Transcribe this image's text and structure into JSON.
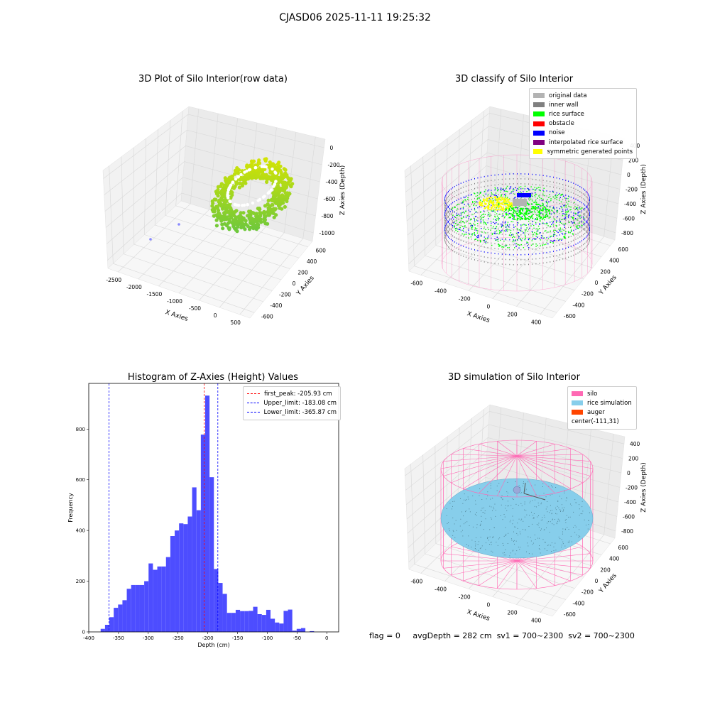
{
  "figure": {
    "title": "CJASD06 2025-11-11 19:25:32"
  },
  "colors": {
    "original": "#b3b3b3",
    "inner_wall": "#808080",
    "rice_surface": "#00ff00",
    "obstacle": "#ff0000",
    "noise": "#0000ff",
    "interpolated": "#800080",
    "symmetric": "#ffff00",
    "silo": "#ff69b4",
    "rice_sim": "#87ceeb",
    "auger": "#ff4500",
    "hist_bar": "#4d4dff"
  },
  "panels": {
    "raw": {
      "title": "3D Plot of Silo Interior(row data)",
      "xlabel": "X Axies",
      "ylabel": "Y Axies",
      "zlabel": "Z Axies (Depth)",
      "xticks": [
        "-2500",
        "-2000",
        "-1500",
        "-1000",
        "-500",
        "0",
        "500"
      ],
      "yticks": [
        "-600",
        "-400",
        "-200",
        "0",
        "200",
        "400",
        "600"
      ],
      "zticks": [
        "0",
        "-200",
        "-400",
        "-600",
        "-800",
        "-1000"
      ]
    },
    "classify": {
      "title": "3D classify of Silo Interior",
      "xlabel": "X Axies",
      "ylabel": "Y Axies",
      "zlabel": "Z Axies (Depth)",
      "xticks": [
        "-600",
        "-400",
        "-200",
        "0",
        "200",
        "400"
      ],
      "yticks": [
        "-600",
        "-400",
        "-200",
        "0",
        "200",
        "400",
        "600"
      ],
      "zticks": [
        "400",
        "200",
        "0",
        "-200",
        "-400",
        "-600",
        "-800"
      ],
      "legend": [
        "original data",
        "inner wall",
        "rice surface",
        "obstacle",
        "noise",
        "interpolated rice surface",
        "symmetric generated points"
      ]
    },
    "simulation": {
      "title": "3D simulation of Silo Interior",
      "xlabel": "X Axies",
      "ylabel": "Y Axies",
      "zlabel": "Z Axies (Depth)",
      "xticks": [
        "-600",
        "-400",
        "-200",
        "0",
        "200",
        "400"
      ],
      "yticks": [
        "-600",
        "-400",
        "-200",
        "0",
        "200",
        "400",
        "600"
      ],
      "zticks": [
        "400",
        "200",
        "0",
        "-200",
        "-400",
        "-600",
        "-800"
      ],
      "legend": [
        "silo",
        "rice simulation",
        "auger",
        "center(-111,31)"
      ]
    }
  },
  "status": {
    "flag": "flag = 0",
    "avg": "avgDepth = 282 cm",
    "sv1": "sv1 = 700~2300",
    "sv2": "sv2 = 700~2300"
  },
  "chart_data": {
    "type": "bar",
    "title": "Histogram of Z-Axies (Height) Values",
    "xlabel": "Depth (cm)",
    "ylabel": "Frequency",
    "xlim": [
      -400,
      20
    ],
    "ylim": [
      0,
      980
    ],
    "xticks": [
      -400,
      -350,
      -300,
      -250,
      -200,
      -150,
      -100,
      -50,
      0
    ],
    "yticks": [
      0,
      200,
      400,
      600,
      800
    ],
    "bin_width": 7.32,
    "bin_start": -380,
    "values": [
      12,
      28,
      58,
      95,
      108,
      125,
      170,
      185,
      185,
      185,
      200,
      270,
      245,
      258,
      258,
      295,
      378,
      400,
      428,
      425,
      455,
      570,
      480,
      778,
      932,
      610,
      248,
      193,
      150,
      75,
      75,
      87,
      82,
      82,
      83,
      99,
      70,
      67,
      87,
      52,
      37,
      33,
      83,
      88,
      5,
      12,
      15,
      0,
      3
    ],
    "vlines": [
      {
        "label": "first_peak: -205.93 cm",
        "x": -205.93,
        "color": "#ff0000"
      },
      {
        "label": "Upper_limit: -183.08 cm",
        "x": -183.08,
        "color": "#0000ff"
      },
      {
        "label": "Lower_limit: -365.87 cm",
        "x": -365.87,
        "color": "#0000ff"
      }
    ],
    "legend_position": "upper-right"
  }
}
